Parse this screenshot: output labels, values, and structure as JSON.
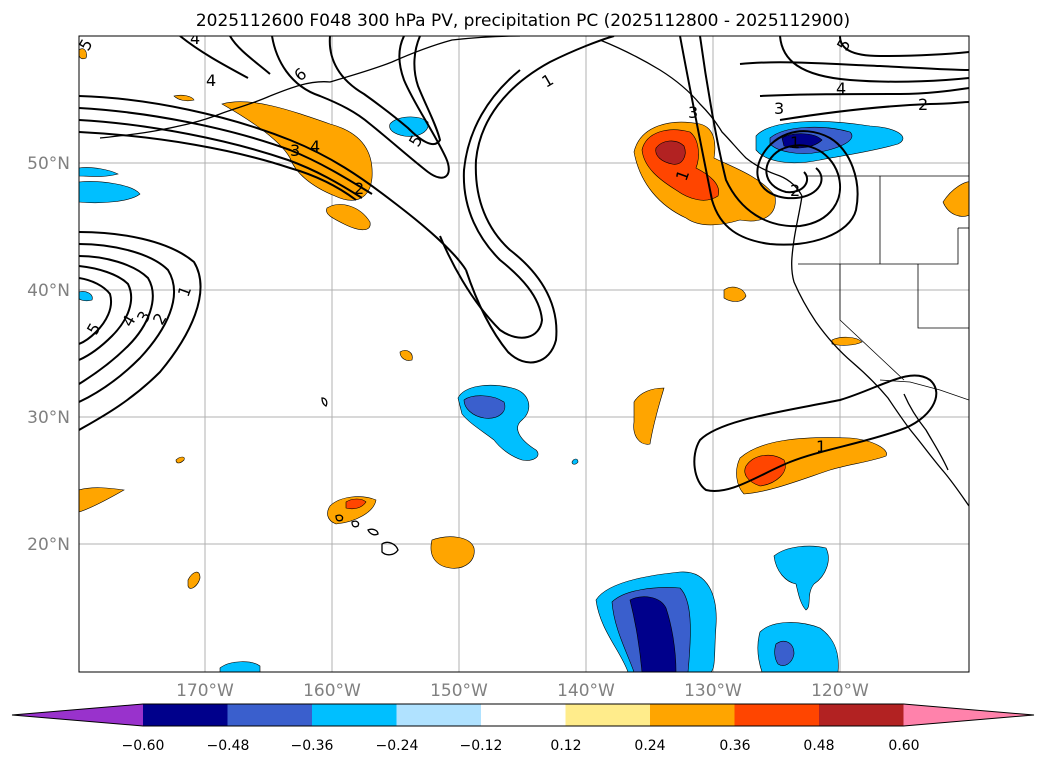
{
  "title": "2025112600 F048 300 hPa PV, precipitation PC (2025112800 - 2025112900)",
  "lat_labels": [
    "50°N",
    "40°N",
    "30°N",
    "20°N"
  ],
  "lon_labels": [
    "170°W",
    "160°W",
    "150°W",
    "140°W",
    "130°W",
    "120°W"
  ],
  "colorbar": {
    "tick_labels": [
      "−0.60",
      "−0.48",
      "−0.36",
      "−0.24",
      "−0.12",
      "0.12",
      "0.24",
      "0.36",
      "0.48",
      "0.60"
    ],
    "levels": [
      -0.6,
      -0.48,
      -0.36,
      -0.24,
      -0.12,
      0.12,
      0.24,
      0.36,
      0.48,
      0.6
    ],
    "colors": [
      "#9932cc",
      "#00008b",
      "#3a5fcd",
      "#00bfff",
      "#b0e2ff",
      "#ffffff",
      "#ffec8b",
      "#ffa500",
      "#ff4500",
      "#b22222",
      "#ff82ab"
    ]
  },
  "pv_contour_labels": [
    "1",
    "2",
    "3",
    "4",
    "5",
    "6"
  ],
  "pv_labels_shown": [
    "5",
    "4",
    "6",
    "3",
    "4",
    "2",
    "5",
    "1",
    "1",
    "5",
    "4",
    "3",
    "2",
    "3",
    "4",
    "2",
    "1",
    "5",
    "4",
    "3",
    "2",
    "1",
    "1"
  ]
}
